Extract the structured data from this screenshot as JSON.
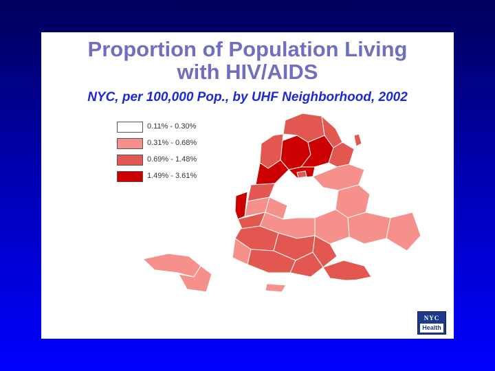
{
  "title": {
    "line1": "Proportion of Population Living",
    "line2": "with HIV/AIDS"
  },
  "subtitle": "NYC, per 100,000 Pop., by UHF Neighborhood, 2002",
  "legend": [
    {
      "label": "0.11% - 0.30%",
      "color": "#ffffff"
    },
    {
      "label": "0.31% - 0.68%",
      "color": "#f5908a"
    },
    {
      "label": "0.69% - 1.48%",
      "color": "#e2574f"
    },
    {
      "label": "1.49% - 3.61%",
      "color": "#cc0000"
    }
  ],
  "logo": {
    "top_text": "NYC",
    "bottom_text": "Health"
  },
  "colors": {
    "background_top": "#00005a",
    "background_bottom": "#0000ff",
    "title_color": "#6f6fbf",
    "subtitle_color": "#1e2ad0",
    "boundary_color": "#ffffff"
  }
}
